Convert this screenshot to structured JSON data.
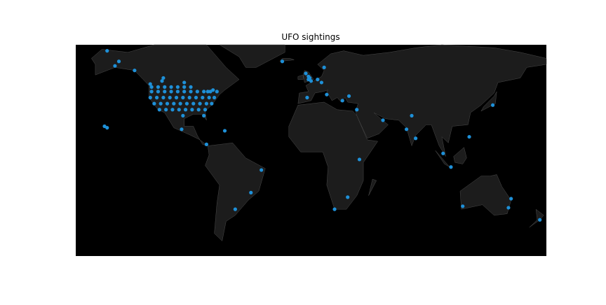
{
  "chart_data": {
    "type": "scatter",
    "title": "UFO sightings",
    "color": "#1e90d8",
    "xlim": [
      -180,
      180
    ],
    "ylim": [
      -65,
      75
    ],
    "x": [
      -122,
      -117,
      -112,
      -107,
      -102,
      -97,
      -92,
      -122,
      -117,
      -112,
      -107,
      -102,
      -97,
      -92,
      -87,
      -82,
      -77,
      -72,
      -123,
      -118,
      -113,
      -108,
      -103,
      -98,
      -93,
      -88,
      -83,
      -78,
      -74,
      -120,
      -115,
      -110,
      -105,
      -100,
      -95,
      -90,
      -85,
      -80,
      -76,
      -116,
      -111,
      -106,
      -101,
      -96,
      -91,
      -86,
      -81,
      -98,
      -82,
      -2,
      -2,
      0,
      -4,
      -1,
      -150,
      -147,
      -135,
      -156,
      -123,
      -114,
      -75,
      -79,
      -113,
      -97,
      -156,
      -158,
      -99,
      -66,
      -46,
      -58,
      28,
      18,
      151,
      153,
      116,
      175,
      77,
      73,
      80,
      139,
      35,
      121,
      5,
      8,
      10,
      -3,
      12,
      24,
      29,
      -22,
      101,
      107,
      37,
      -80,
      -38,
      55
    ],
    "values": [
      47,
      47,
      47,
      47,
      47,
      47,
      47,
      44,
      44,
      44,
      44,
      44,
      44,
      44,
      44,
      44,
      44,
      44,
      40,
      40,
      40,
      40,
      40,
      40,
      40,
      40,
      40,
      40,
      40,
      36,
      36,
      36,
      36,
      36,
      36,
      36,
      36,
      36,
      36,
      32,
      32,
      32,
      32,
      32,
      32,
      32,
      32,
      28,
      28,
      52,
      54,
      51,
      56,
      53,
      61,
      64,
      58,
      71,
      49,
      51,
      45,
      44,
      53,
      50,
      20,
      21,
      19,
      18,
      -23,
      -34,
      -26,
      -34,
      -33,
      -27,
      -32,
      -41,
      28,
      19,
      13,
      35,
      32,
      14,
      52,
      50,
      60,
      40,
      42,
      38,
      41,
      64,
      3,
      -6,
      -1,
      9,
      -8,
      25
    ]
  }
}
